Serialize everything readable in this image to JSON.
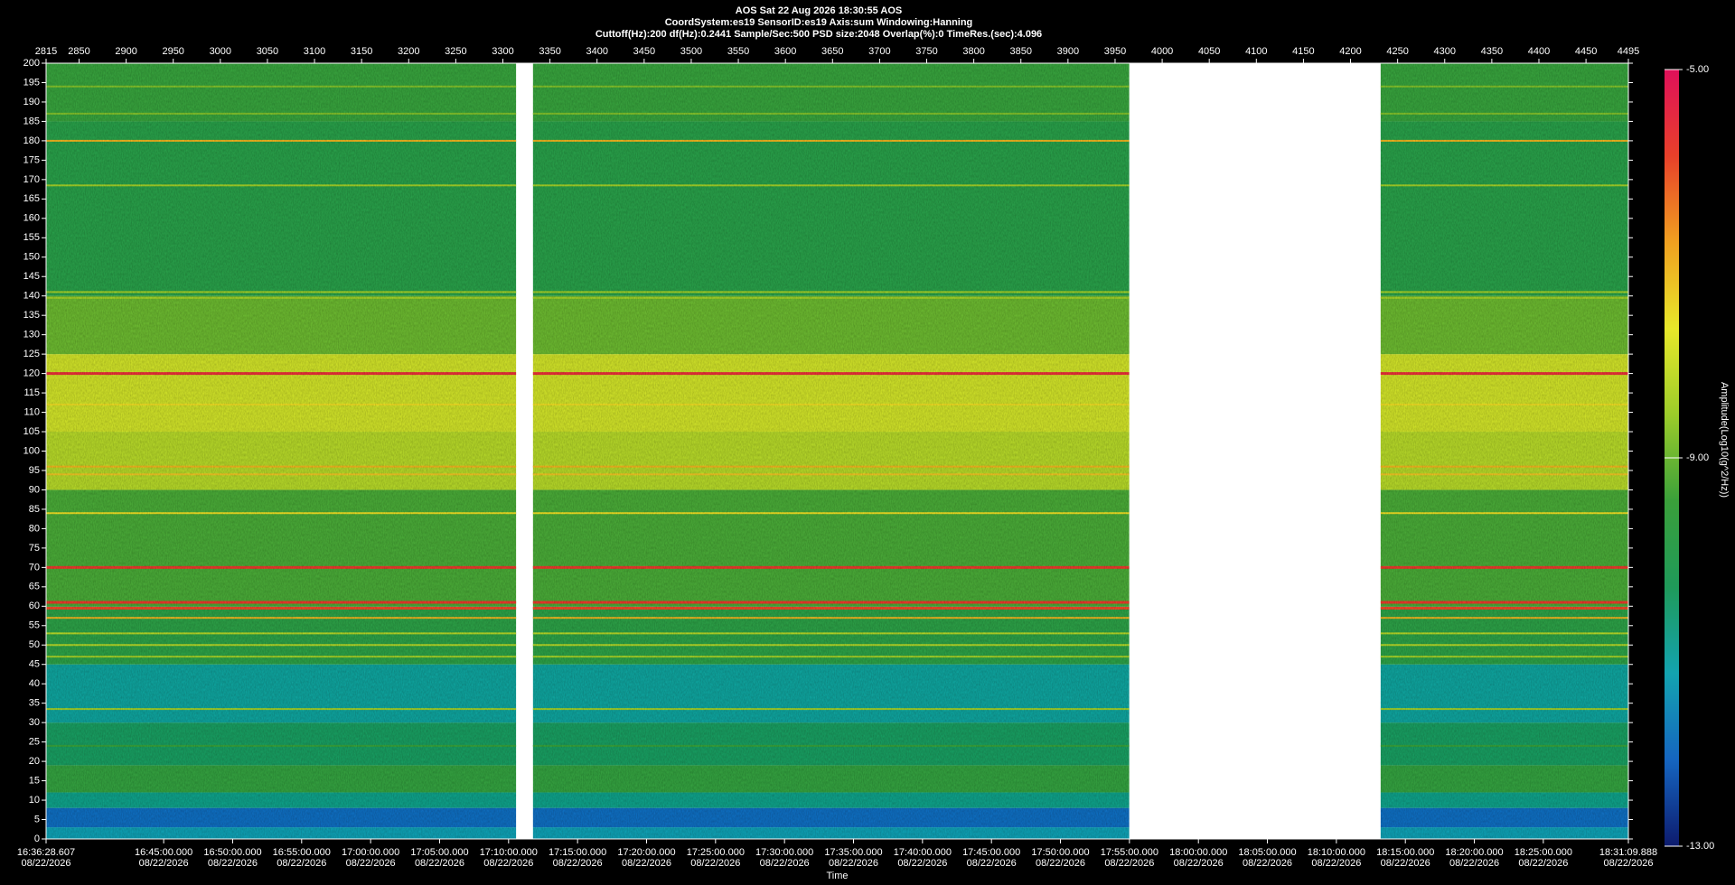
{
  "chart_data": {
    "type": "spectrogram",
    "header": [
      "AOS  Sat 22 Aug 2026 18:30:55  AOS",
      "CoordSystem:es19    SensorID:es19    Axis:sum    Windowing:Hanning",
      "Cuttoff(Hz):200      df(Hz):0.2441      Sample/Sec:500      PSD size:2048      Overlap(%):0      TimeRes.(sec):4.096"
    ],
    "x_label": "Time",
    "xlim": [
      2815,
      4495
    ],
    "xticks": [
      2815,
      2850,
      2900,
      2950,
      3000,
      3050,
      3100,
      3150,
      3200,
      3250,
      3300,
      3350,
      3400,
      3450,
      3500,
      3550,
      3600,
      3650,
      3700,
      3750,
      3800,
      3850,
      3900,
      3950,
      4000,
      4050,
      4100,
      4150,
      4200,
      4250,
      4300,
      4350,
      4400,
      4450,
      4495
    ],
    "x2ticks": [
      {
        "value": 2815,
        "label": "16:36:28.607"
      },
      {
        "value": 2939.85,
        "label": "16:45:00.000"
      },
      {
        "value": 3013.09,
        "label": "16:50:00.000"
      },
      {
        "value": 3086.33,
        "label": "16:55:00.000"
      },
      {
        "value": 3159.58,
        "label": "17:00:00.000"
      },
      {
        "value": 3232.82,
        "label": "17:05:00.000"
      },
      {
        "value": 3306.06,
        "label": "17:10:00.000"
      },
      {
        "value": 3379.3,
        "label": "17:15:00.000"
      },
      {
        "value": 3452.55,
        "label": "17:20:00.000"
      },
      {
        "value": 3525.79,
        "label": "17:25:00.000"
      },
      {
        "value": 3599.03,
        "label": "17:30:00.000"
      },
      {
        "value": 3672.27,
        "label": "17:35:00.000"
      },
      {
        "value": 3745.52,
        "label": "17:40:00.000"
      },
      {
        "value": 3818.76,
        "label": "17:45:00.000"
      },
      {
        "value": 3892.0,
        "label": "17:50:00.000"
      },
      {
        "value": 3965.24,
        "label": "17:55:00.000"
      },
      {
        "value": 4038.49,
        "label": "18:00:00.000"
      },
      {
        "value": 4111.73,
        "label": "18:05:00.000"
      },
      {
        "value": 4184.97,
        "label": "18:10:00.000"
      },
      {
        "value": 4258.21,
        "label": "18:15:00.000"
      },
      {
        "value": 4331.46,
        "label": "18:20:00.000"
      },
      {
        "value": 4404.7,
        "label": "18:25:00.000"
      },
      {
        "value": 4495,
        "label": "18:31:09.888"
      }
    ],
    "x2_date": "08/22/2026",
    "ylim": [
      0,
      200
    ],
    "yticks": [
      0,
      5,
      10,
      15,
      20,
      25,
      30,
      35,
      40,
      45,
      50,
      55,
      60,
      65,
      70,
      75,
      80,
      85,
      90,
      95,
      100,
      105,
      110,
      115,
      120,
      125,
      130,
      135,
      140,
      145,
      150,
      155,
      160,
      165,
      170,
      175,
      180,
      185,
      190,
      195,
      200
    ],
    "segments": [
      [
        2815,
        3314
      ],
      [
        3332,
        3965
      ],
      [
        4232,
        4495
      ]
    ],
    "bands": [
      {
        "range": [
          0,
          3
        ],
        "value": -11.3
      },
      {
        "range": [
          3,
          8
        ],
        "value": -12
      },
      {
        "range": [
          8,
          12
        ],
        "value": -10.8
      },
      {
        "range": [
          12,
          19
        ],
        "value": -9.6
      },
      {
        "range": [
          19,
          30
        ],
        "value": -10.4
      },
      {
        "range": [
          30,
          45
        ],
        "value": -11
      },
      {
        "range": [
          45,
          60
        ],
        "value": -9.8
      },
      {
        "range": [
          60,
          90
        ],
        "value": -9.3
      },
      {
        "range": [
          90,
          105
        ],
        "value": -8.3
      },
      {
        "range": [
          105,
          125
        ],
        "value": -8
      },
      {
        "range": [
          125,
          140
        ],
        "value": -9
      },
      {
        "range": [
          140,
          185
        ],
        "value": -9.9
      },
      {
        "range": [
          185,
          200
        ],
        "value": -9.5
      }
    ],
    "lines": [
      {
        "freq": 180,
        "value": -7
      },
      {
        "freq": 120,
        "value": -5.6
      },
      {
        "freq": 112,
        "value": -7.5
      },
      {
        "freq": 96,
        "value": -7
      },
      {
        "freq": 94,
        "value": -7.2
      },
      {
        "freq": 84,
        "value": -7.5
      },
      {
        "freq": 70,
        "value": -5.8
      },
      {
        "freq": 61,
        "value": -5.8
      },
      {
        "freq": 59.5,
        "value": -6
      },
      {
        "freq": 57,
        "value": -7
      },
      {
        "freq": 53,
        "value": -8.3
      },
      {
        "freq": 50,
        "value": -8.3
      },
      {
        "freq": 47,
        "value": -8.5
      },
      {
        "freq": 33.5,
        "value": -8.5
      },
      {
        "freq": 141,
        "value": -8.5
      },
      {
        "freq": 139.5,
        "value": -8.5
      },
      {
        "freq": 168.5,
        "value": -8.5
      },
      {
        "freq": 187,
        "value": -8.8
      },
      {
        "freq": 194,
        "value": -8.8
      },
      {
        "freq": 24,
        "value": -9.5
      }
    ],
    "colorbar_label": "Amplitude(Log10(g^2/Hz))",
    "clim": [
      -13,
      -5
    ],
    "cticks": [
      {
        "value": -13,
        "label": "-13.00"
      },
      {
        "value": -9,
        "label": "-9.00"
      },
      {
        "value": -5,
        "label": "-5.00"
      }
    ],
    "colormap": [
      "#0d1b6e",
      "#1565c0",
      "#13a3b0",
      "#1f9a5a",
      "#3aa03a",
      "#9ccc2a",
      "#e8e82a",
      "#f0a020",
      "#e8402a",
      "#e0105a"
    ]
  }
}
